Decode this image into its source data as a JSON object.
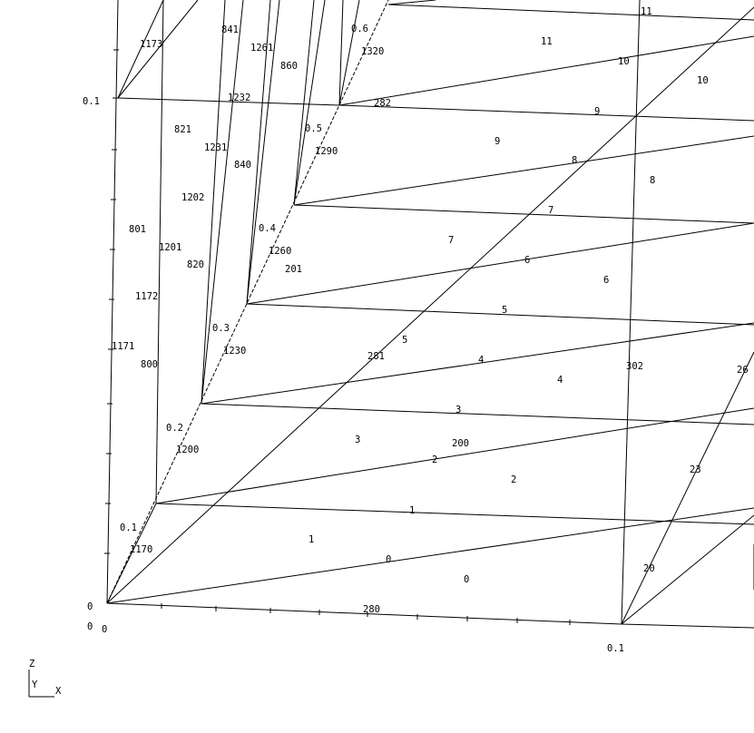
{
  "scene": {
    "background": "#ffffff",
    "line_color": "#000000",
    "axis_ticks": {
      "z_tick_upper": "0.1",
      "z_tick_origin": "0",
      "y_tick_origin": "0",
      "x_tick_origin": "0",
      "x_tick_right": "0.1"
    },
    "axis_triad": {
      "z": "Z",
      "y": "Y",
      "x": "X"
    },
    "edge_labels": [
      "0",
      "1",
      "2",
      "3",
      "4",
      "5",
      "6",
      "7",
      "8",
      "9",
      "10",
      "11",
      "0.1",
      "0.2",
      "0.3",
      "0.4",
      "0.5",
      "0.6",
      "20",
      "23",
      "26"
    ],
    "element_labels": [
      "0",
      "1",
      "2",
      "3",
      "4",
      "5",
      "6",
      "7",
      "8",
      "9",
      "10",
      "11"
    ],
    "node_labels": [
      "1170",
      "1200",
      "1230",
      "1260",
      "1290",
      "1320",
      "1171",
      "800",
      "1172",
      "801",
      "1173",
      "820",
      "1201",
      "1202",
      "821",
      "840",
      "1231",
      "1232",
      "860",
      "841",
      "1261",
      "200",
      "201",
      "280",
      "281",
      "282",
      "302"
    ]
  }
}
